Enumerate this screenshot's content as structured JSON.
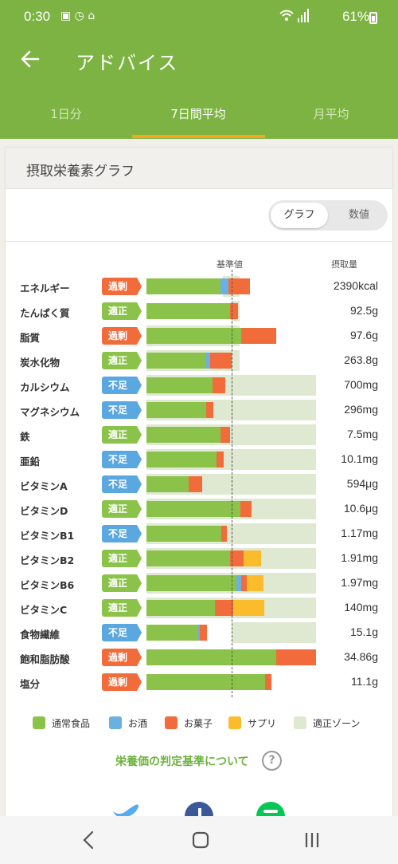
{
  "status_bar": {
    "time": "0:30",
    "notif": "▣ ◷ ⌂",
    "battery": "61%"
  },
  "app_bar": {
    "title": "アドバイス"
  },
  "tabs": [
    {
      "label": "1日分",
      "active": false
    },
    {
      "label": "7日間平均",
      "active": true
    },
    {
      "label": "月平均",
      "active": false
    }
  ],
  "card": {
    "title": "摂取栄養素グラフ",
    "toggle": {
      "graph": "グラフ",
      "value": "数値"
    }
  },
  "colors": {
    "normal_food": "#8bc34a",
    "alcohol": "#6ab0e0",
    "snack": "#f26b3a",
    "supplement": "#fbbc2c",
    "proper_zone": "#dfe8d0",
    "badge_over": "#f26b3a",
    "badge_ok": "#8bc34a",
    "badge_under": "#5ba7e0"
  },
  "chart_data": {
    "type": "bar",
    "stacked": true,
    "orientation": "horizontal",
    "reference_label": "基準値",
    "value_header": "摂取量",
    "unit": "% of reference (estimated)",
    "reference_line_at": 100,
    "xlim": [
      0,
      200
    ],
    "categories": [
      "エネルギー",
      "たんぱく質",
      "脂質",
      "炭水化物",
      "カルシウム",
      "マグネシウム",
      "鉄",
      "亜鉛",
      "ビタミンA",
      "ビタミンD",
      "ビタミンB1",
      "ビタミンB2",
      "ビタミンB6",
      "ビタミンC",
      "食物繊維",
      "飽和脂肪酸",
      "塩分"
    ],
    "status": [
      "過剰",
      "適正",
      "過剰",
      "適正",
      "不足",
      "不足",
      "適正",
      "不足",
      "不足",
      "適正",
      "不足",
      "適正",
      "適正",
      "適正",
      "不足",
      "過剰",
      "過剰"
    ],
    "status_type": [
      "over",
      "ok",
      "over",
      "ok",
      "under",
      "under",
      "ok",
      "under",
      "under",
      "ok",
      "under",
      "ok",
      "ok",
      "ok",
      "under",
      "over",
      "over"
    ],
    "amounts": [
      "2390kcal",
      "92.5g",
      "97.6g",
      "263.8g",
      "700mg",
      "296mg",
      "7.5mg",
      "10.1mg",
      "594μg",
      "10.6μg",
      "1.17mg",
      "1.91mg",
      "1.97mg",
      "140mg",
      "15.1g",
      "34.86g",
      "11.1g"
    ],
    "proper_zone": [
      [
        90,
        110
      ],
      [
        100,
        110
      ],
      [
        0,
        110
      ],
      [
        0,
        110
      ],
      [
        0,
        200
      ],
      [
        0,
        200
      ],
      [
        0,
        200
      ],
      [
        0,
        200
      ],
      [
        0,
        200
      ],
      [
        0,
        200
      ],
      [
        0,
        200
      ],
      [
        0,
        200
      ],
      [
        0,
        200
      ],
      [
        0,
        200
      ],
      [
        100,
        200
      ],
      [
        0,
        0
      ],
      [
        0,
        0
      ]
    ],
    "series": [
      {
        "name": "通常食品",
        "key": "normal_food",
        "values": [
          87,
          99,
          112,
          70,
          78,
          70,
          87,
          83,
          50,
          111,
          88,
          99,
          106,
          81,
          61,
          153,
          140
        ]
      },
      {
        "name": "お酒",
        "key": "alcohol",
        "values": [
          10,
          0,
          0,
          5,
          0,
          0,
          0,
          0,
          0,
          0,
          0,
          0,
          6,
          0,
          2,
          0,
          0
        ]
      },
      {
        "name": "お菓子",
        "key": "snack",
        "values": [
          25,
          9,
          41,
          25,
          15,
          9,
          12,
          8,
          16,
          13,
          7,
          16,
          6,
          21,
          8,
          47,
          7
        ]
      },
      {
        "name": "サプリ",
        "key": "supplement",
        "values": [
          0,
          0,
          0,
          0,
          0,
          0,
          0,
          0,
          0,
          0,
          0,
          20,
          20,
          37,
          0,
          0,
          0
        ]
      }
    ],
    "legend": [
      {
        "name": "通常食品",
        "color_key": "normal_food"
      },
      {
        "name": "お酒",
        "color_key": "alcohol"
      },
      {
        "name": "お菓子",
        "color_key": "snack"
      },
      {
        "name": "サプリ",
        "color_key": "supplement"
      },
      {
        "name": "適正ゾーン",
        "color_key": "proper_zone"
      }
    ]
  },
  "footer": {
    "criteria_link": "栄養価の判定基準について",
    "help": "?"
  }
}
